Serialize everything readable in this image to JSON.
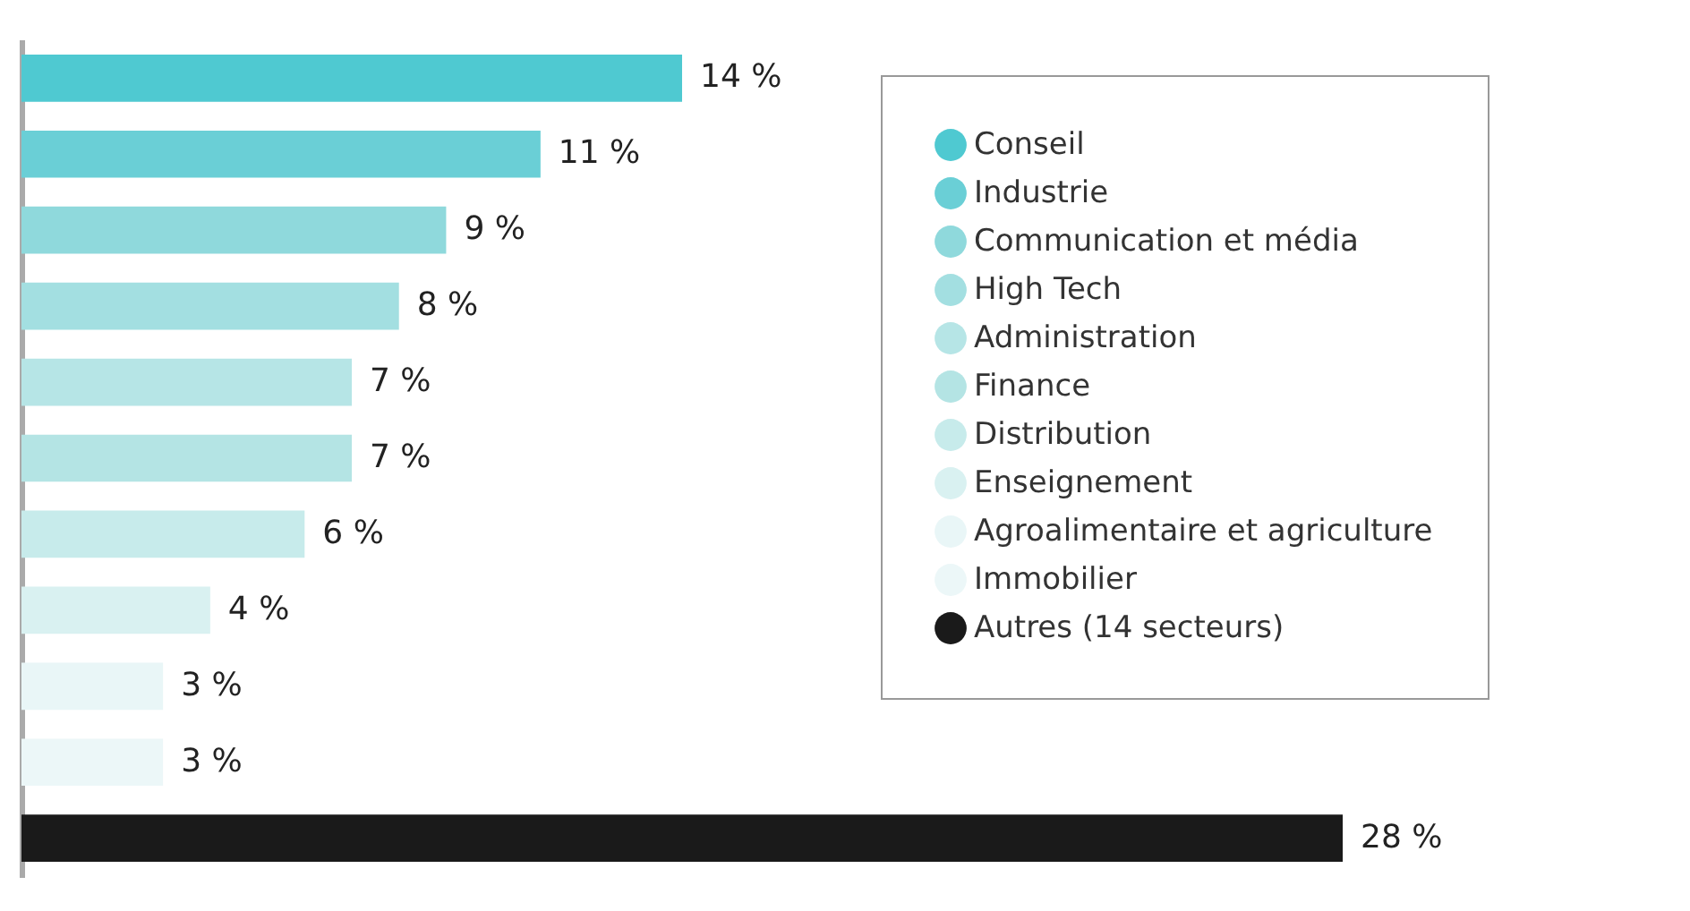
{
  "chart_data": {
    "type": "bar",
    "orientation": "horizontal",
    "stacked": true,
    "categories": [
      null,
      null,
      null,
      null,
      null,
      null,
      null,
      null,
      null,
      null,
      null
    ],
    "series": [
      {
        "name": "Conseil",
        "color": "#4fc9d1",
        "values": [
          14,
          null,
          null,
          null,
          null,
          null,
          null,
          null,
          null,
          null,
          null
        ],
        "value_labels": [
          "14 %",
          null,
          null,
          null,
          null,
          null,
          null,
          null,
          null,
          null,
          null
        ]
      },
      {
        "name": "Industrie",
        "color": "#6acfd6",
        "values": [
          null,
          11,
          null,
          null,
          null,
          null,
          null,
          null,
          null,
          null,
          null
        ],
        "value_labels": [
          null,
          "11 %",
          null,
          null,
          null,
          null,
          null,
          null,
          null,
          null,
          null
        ]
      },
      {
        "name": "Communication et média",
        "color": "#8fd9dc",
        "values": [
          null,
          null,
          9,
          null,
          null,
          null,
          null,
          null,
          null,
          null,
          null
        ],
        "value_labels": [
          null,
          null,
          "9 %",
          null,
          null,
          null,
          null,
          null,
          null,
          null,
          null
        ]
      },
      {
        "name": "High Tech",
        "color": "#a3dfe1",
        "values": [
          null,
          null,
          null,
          8,
          null,
          null,
          null,
          null,
          null,
          null,
          null
        ],
        "value_labels": [
          null,
          null,
          null,
          "8 %",
          null,
          null,
          null,
          null,
          null,
          null,
          null
        ]
      },
      {
        "name": "Administration",
        "color": "#b6e5e6",
        "values": [
          null,
          null,
          null,
          null,
          7,
          null,
          null,
          null,
          null,
          null,
          null
        ],
        "value_labels": [
          null,
          null,
          null,
          null,
          "7 %",
          null,
          null,
          null,
          null,
          null,
          null
        ]
      },
      {
        "name": "Finance",
        "color": "#b4e4e4",
        "values": [
          null,
          null,
          null,
          null,
          null,
          7,
          null,
          null,
          null,
          null,
          null
        ],
        "value_labels": [
          null,
          null,
          null,
          null,
          null,
          "7 %",
          null,
          null,
          null,
          null,
          null
        ]
      },
      {
        "name": "Distribution",
        "color": "#c7ebeb",
        "values": [
          null,
          null,
          null,
          null,
          null,
          null,
          6,
          null,
          null,
          null,
          null
        ],
        "value_labels": [
          null,
          null,
          null,
          null,
          null,
          null,
          "6 %",
          null,
          null,
          null,
          null
        ]
      },
      {
        "name": "Enseignement",
        "color": "#d9f1f1",
        "values": [
          null,
          null,
          null,
          null,
          null,
          null,
          null,
          4,
          null,
          null,
          null
        ],
        "value_labels": [
          null,
          null,
          null,
          null,
          null,
          null,
          null,
          "4 %",
          null,
          null,
          null
        ]
      },
      {
        "name": "Agroalimentaire et agriculture",
        "color": "#e9f6f7",
        "values": [
          null,
          null,
          null,
          null,
          null,
          null,
          null,
          null,
          3,
          null,
          null
        ],
        "value_labels": [
          null,
          null,
          null,
          null,
          null,
          null,
          null,
          null,
          "3 %",
          null,
          null
        ]
      },
      {
        "name": "Immobilier",
        "color": "#ecf7f8",
        "values": [
          null,
          null,
          null,
          null,
          null,
          null,
          null,
          null,
          null,
          3,
          null
        ],
        "value_labels": [
          null,
          null,
          null,
          null,
          null,
          null,
          null,
          null,
          null,
          "3 %",
          null
        ]
      },
      {
        "name": "Autres (14 secteurs)",
        "color": "#1a1a1a",
        "values": [
          null,
          null,
          null,
          null,
          null,
          null,
          null,
          null,
          null,
          null,
          28
        ],
        "value_labels": [
          null,
          null,
          null,
          null,
          null,
          null,
          null,
          null,
          null,
          null,
          "28 %"
        ]
      }
    ],
    "legend": "top right",
    "tick_labels": false
  }
}
